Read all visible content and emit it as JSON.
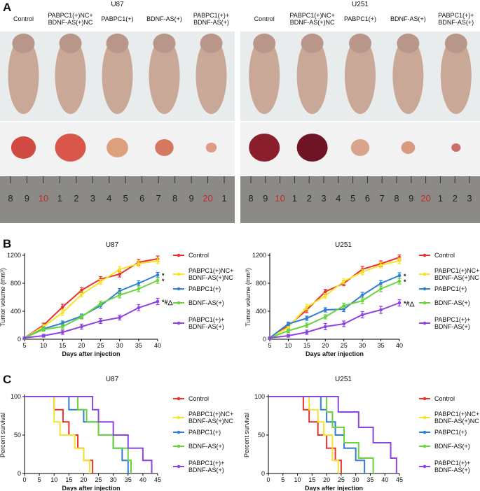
{
  "panel_labels": [
    "A",
    "B",
    "C"
  ],
  "photos": [
    {
      "title": "U87",
      "groups": [
        "Control",
        "PABPC1(+)NC+\nBDNF-AS(+)NC",
        "PABPC1(+)",
        "BDNF-AS(+)",
        "PABPC1(+)+\nBDNF-AS(+)"
      ],
      "ruler": [
        "8",
        "9",
        "10",
        "1",
        "2",
        "3",
        "4",
        "5",
        "6",
        "7",
        "8",
        "9",
        "20",
        "1"
      ]
    },
    {
      "title": "U251",
      "groups": [
        "Control",
        "PABPC1(+)NC+\nBDNF-AS(+)NC",
        "PABPC1(+)",
        "BDNF-AS(+)",
        "PABPC1(+)+\nBDNF-AS(+)"
      ],
      "ruler": [
        "8",
        "9",
        "10",
        "1",
        "2",
        "3",
        "4",
        "5",
        "6",
        "7",
        "8",
        "9",
        "20",
        "1",
        "2",
        "3"
      ]
    }
  ],
  "chart_data": [
    {
      "type": "line",
      "title": "U87",
      "x_label": "Days after injection",
      "y_label": "Tumor volume (mm³)",
      "x": [
        5,
        10,
        15,
        20,
        25,
        30,
        35,
        40
      ],
      "xlim": [
        5,
        40
      ],
      "xticks": [
        5,
        10,
        15,
        20,
        25,
        30,
        35,
        40
      ],
      "ylim": [
        0,
        1200
      ],
      "yticks": [
        0,
        400,
        800,
        1200
      ],
      "annotations": [
        "*",
        "*",
        "*#△"
      ],
      "series": [
        {
          "name": "Control",
          "color": "#e8322b",
          "values": [
            20,
            200,
            460,
            700,
            860,
            930,
            1100,
            1150
          ],
          "errors": [
            10,
            30,
            40,
            35,
            35,
            40,
            40,
            40
          ]
        },
        {
          "name": "PABPC1(+)NC+\nBDNF-AS(+)NC",
          "color": "#f5e52a",
          "values": [
            20,
            180,
            380,
            640,
            820,
            1000,
            1080,
            1120
          ],
          "errors": [
            10,
            30,
            40,
            35,
            35,
            40,
            40,
            40
          ]
        },
        {
          "name": "PABPC1(+)",
          "color": "#2f7fd6",
          "values": [
            20,
            150,
            230,
            330,
            480,
            690,
            800,
            920
          ],
          "errors": [
            10,
            25,
            30,
            30,
            35,
            35,
            35,
            35
          ]
        },
        {
          "name": "BDNF-AS(+)",
          "color": "#6ad43a",
          "values": [
            20,
            140,
            180,
            320,
            510,
            630,
            720,
            840
          ],
          "errors": [
            10,
            25,
            30,
            30,
            35,
            40,
            40,
            40
          ]
        },
        {
          "name": "PABPC1(+)+\nBDNF-AS(+)",
          "color": "#8e44e0",
          "values": [
            20,
            50,
            100,
            180,
            260,
            310,
            450,
            540
          ],
          "errors": [
            10,
            20,
            30,
            35,
            35,
            35,
            45,
            45
          ]
        }
      ]
    },
    {
      "type": "line",
      "title": "U251",
      "x_label": "Days after injection",
      "y_label": "Tumor volume (mm³)",
      "x": [
        5,
        10,
        15,
        20,
        25,
        30,
        35,
        40
      ],
      "xlim": [
        5,
        40
      ],
      "xticks": [
        5,
        10,
        15,
        20,
        25,
        30,
        35,
        40
      ],
      "ylim": [
        0,
        1200
      ],
      "yticks": [
        0,
        400,
        800,
        1200
      ],
      "annotations": [
        "*",
        "*",
        "*#△"
      ],
      "series": [
        {
          "name": "Control",
          "color": "#e8322b",
          "values": [
            20,
            190,
            420,
            680,
            800,
            1000,
            1080,
            1170
          ],
          "errors": [
            10,
            30,
            40,
            35,
            35,
            40,
            40,
            35
          ]
        },
        {
          "name": "PABPC1(+)NC+\nBDNF-AS(+)NC",
          "color": "#f5e52a",
          "values": [
            20,
            170,
            460,
            620,
            830,
            960,
            1060,
            1120
          ],
          "errors": [
            10,
            30,
            40,
            35,
            35,
            40,
            40,
            40
          ]
        },
        {
          "name": "PABPC1(+)",
          "color": "#2f7fd6",
          "values": [
            20,
            220,
            300,
            420,
            430,
            630,
            800,
            910
          ],
          "errors": [
            10,
            25,
            30,
            30,
            35,
            40,
            40,
            40
          ]
        },
        {
          "name": "BDNF-AS(+)",
          "color": "#6ad43a",
          "values": [
            20,
            120,
            200,
            320,
            480,
            550,
            720,
            830
          ],
          "errors": [
            10,
            25,
            30,
            30,
            35,
            40,
            40,
            40
          ]
        },
        {
          "name": "PABPC1(+)+\nBDNF-AS(+)",
          "color": "#8e44e0",
          "values": [
            20,
            50,
            100,
            180,
            220,
            350,
            420,
            520
          ],
          "errors": [
            10,
            20,
            30,
            45,
            40,
            45,
            50,
            45
          ]
        }
      ]
    },
    {
      "type": "step",
      "title": "U87",
      "x_label": "Days after injection",
      "y_label": "Percent survival",
      "xlim": [
        0,
        45
      ],
      "xticks": [
        0,
        5,
        10,
        15,
        20,
        25,
        30,
        35,
        40,
        45
      ],
      "ylim": [
        0,
        100
      ],
      "yticks": [
        0,
        50,
        100
      ],
      "series": [
        {
          "name": "Control",
          "color": "#e8322b",
          "x": [
            0,
            10,
            13,
            15,
            18,
            20,
            23
          ],
          "values": [
            100,
            83,
            67,
            50,
            33,
            17,
            0
          ]
        },
        {
          "name": "PABPC1(+)NC+\nBDNF-AS(+)NC",
          "color": "#f5e52a",
          "x": [
            0,
            10,
            12,
            17,
            20,
            22
          ],
          "values": [
            100,
            67,
            50,
            33,
            17,
            0
          ]
        },
        {
          "name": "PABPC1(+)",
          "color": "#2f7fd6",
          "x": [
            0,
            15,
            20,
            25,
            30,
            33,
            35
          ],
          "values": [
            100,
            83,
            67,
            50,
            33,
            17,
            0
          ]
        },
        {
          "name": "BDNF-AS(+)",
          "color": "#6ad43a",
          "x": [
            0,
            18,
            21,
            25,
            30,
            35,
            36
          ],
          "values": [
            100,
            83,
            67,
            50,
            33,
            17,
            0
          ]
        },
        {
          "name": "PABPC1(+)+\nBDNF-AS(+)",
          "color": "#8e44e0",
          "x": [
            0,
            23,
            25,
            30,
            35,
            40,
            43
          ],
          "values": [
            100,
            83,
            67,
            50,
            33,
            17,
            0
          ]
        }
      ]
    },
    {
      "type": "step",
      "title": "U251",
      "x_label": "Days after injection",
      "y_label": "Percent survival",
      "xlim": [
        0,
        45
      ],
      "xticks": [
        0,
        5,
        10,
        15,
        20,
        25,
        30,
        35,
        40,
        45
      ],
      "ylim": [
        0,
        100
      ],
      "yticks": [
        0,
        50,
        100
      ],
      "series": [
        {
          "name": "Control",
          "color": "#e8322b",
          "x": [
            0,
            12,
            14,
            17,
            20,
            23,
            25
          ],
          "values": [
            100,
            83,
            67,
            50,
            33,
            17,
            0
          ]
        },
        {
          "name": "PABPC1(+)NC+\nBDNF-AS(+)NC",
          "color": "#f5e52a",
          "x": [
            0,
            14,
            17,
            19,
            22,
            24
          ],
          "values": [
            100,
            83,
            67,
            50,
            17,
            0
          ]
        },
        {
          "name": "PABPC1(+)",
          "color": "#2f7fd6",
          "x": [
            0,
            18,
            20,
            23,
            26,
            30,
            33
          ],
          "values": [
            100,
            83,
            67,
            50,
            33,
            17,
            0
          ]
        },
        {
          "name": "BDNF-AS(+)",
          "color": "#6ad43a",
          "x": [
            0,
            20,
            22,
            26,
            31,
            36
          ],
          "values": [
            100,
            80,
            60,
            40,
            20,
            0
          ]
        },
        {
          "name": "PABPC1(+)+\nBDNF-AS(+)",
          "color": "#8e44e0",
          "x": [
            0,
            24,
            31,
            36,
            42,
            44
          ],
          "values": [
            100,
            80,
            60,
            40,
            20,
            0
          ]
        }
      ]
    }
  ]
}
